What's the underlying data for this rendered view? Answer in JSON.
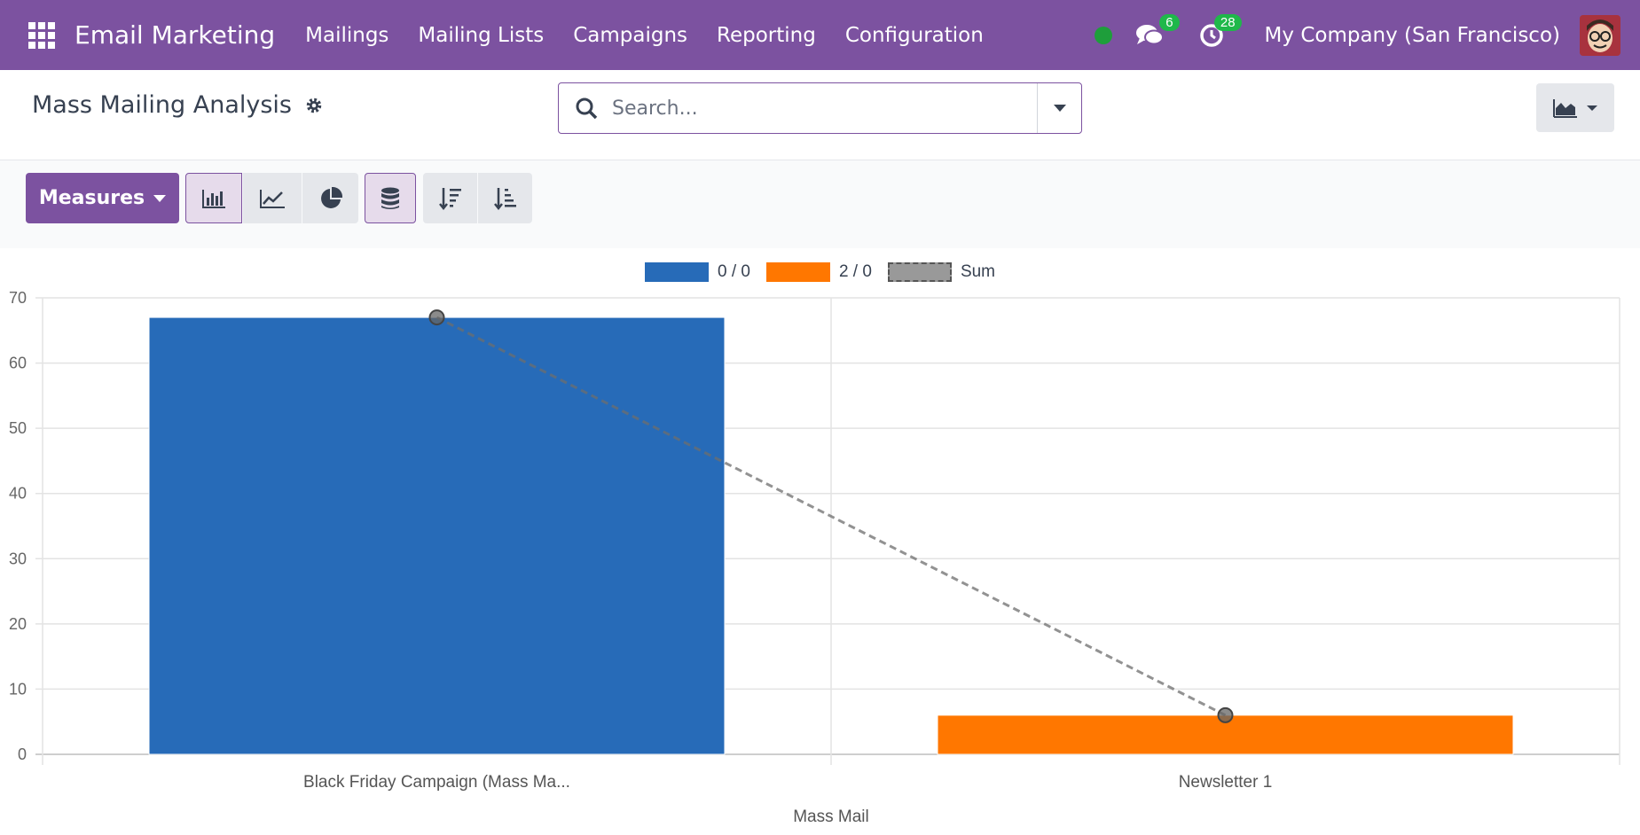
{
  "navbar": {
    "app_title": "Email Marketing",
    "menu": [
      "Mailings",
      "Mailing Lists",
      "Campaigns",
      "Reporting",
      "Configuration"
    ],
    "messages_count": "6",
    "activities_count": "28",
    "company": "My Company (San Francisco)",
    "icons": [
      "apps-grid-icon",
      "chat-icon",
      "clock-icon"
    ]
  },
  "control_panel": {
    "title": "Mass Mailing Analysis",
    "search_placeholder": "Search..."
  },
  "toolbar": {
    "measures_label": "Measures",
    "buttons": [
      "bar-chart-icon",
      "line-chart-icon",
      "pie-chart-icon",
      "stacked-icon",
      "sort-descending-icon",
      "sort-ascending-icon"
    ]
  },
  "colors": {
    "brand": "#7c52a0",
    "series_1": "#276bb8",
    "series_2": "#ff7700",
    "sum_line": "#888888"
  },
  "chart_data": {
    "type": "bar",
    "categories": [
      "Black Friday Campaign (Mass Ma...",
      "Newsletter 1"
    ],
    "series": [
      {
        "name": "0 / 0",
        "values": [
          67,
          0
        ]
      },
      {
        "name": "2 / 0",
        "values": [
          0,
          6
        ]
      }
    ],
    "sum": {
      "name": "Sum",
      "values": [
        67,
        6
      ]
    },
    "xlabel": "Mass Mail",
    "ylabel": "",
    "ylim": [
      0,
      70
    ],
    "yticks": [
      0,
      10,
      20,
      30,
      40,
      50,
      60,
      70
    ],
    "grid": true,
    "legend": "top-center"
  }
}
